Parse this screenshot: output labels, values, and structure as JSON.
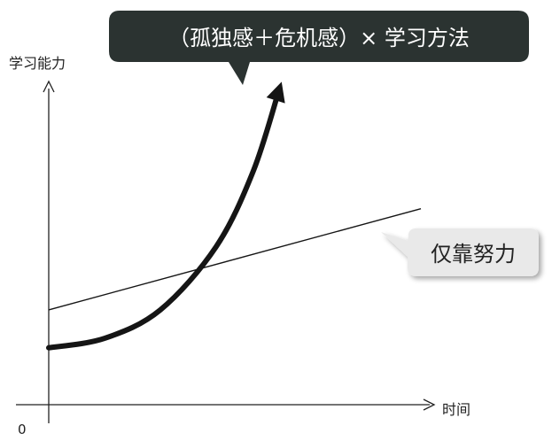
{
  "chart_data": {
    "type": "line",
    "ylabel": "学习能力",
    "xlabel": "时间",
    "origin_label": "0",
    "grid": false,
    "axis_ticks_numeric": false,
    "series": [
      {
        "kind": "curve",
        "style": "thick-with-arrowhead",
        "x": [
          0,
          0.15,
          0.3,
          0.45,
          0.55,
          0.62
        ],
        "y": [
          0.18,
          0.21,
          0.3,
          0.5,
          0.74,
          1.0
        ]
      },
      {
        "kind": "straight",
        "style": "thin",
        "x": [
          0,
          1.0
        ],
        "y": [
          0.3,
          0.62
        ]
      }
    ],
    "annotations": [
      {
        "text": "（孤独感＋危机感）× 学习方法",
        "attached_to": "curve",
        "box": "dark"
      },
      {
        "text": "仅靠努力",
        "attached_to": "straight",
        "box": "light"
      }
    ]
  },
  "colors": {
    "axis": "#222222",
    "line": "#151515",
    "dark_callout": "#2b3331",
    "dark_callout_text": "#ffffff",
    "light_callout": "#e9e9e9",
    "light_callout_text": "#222222"
  }
}
